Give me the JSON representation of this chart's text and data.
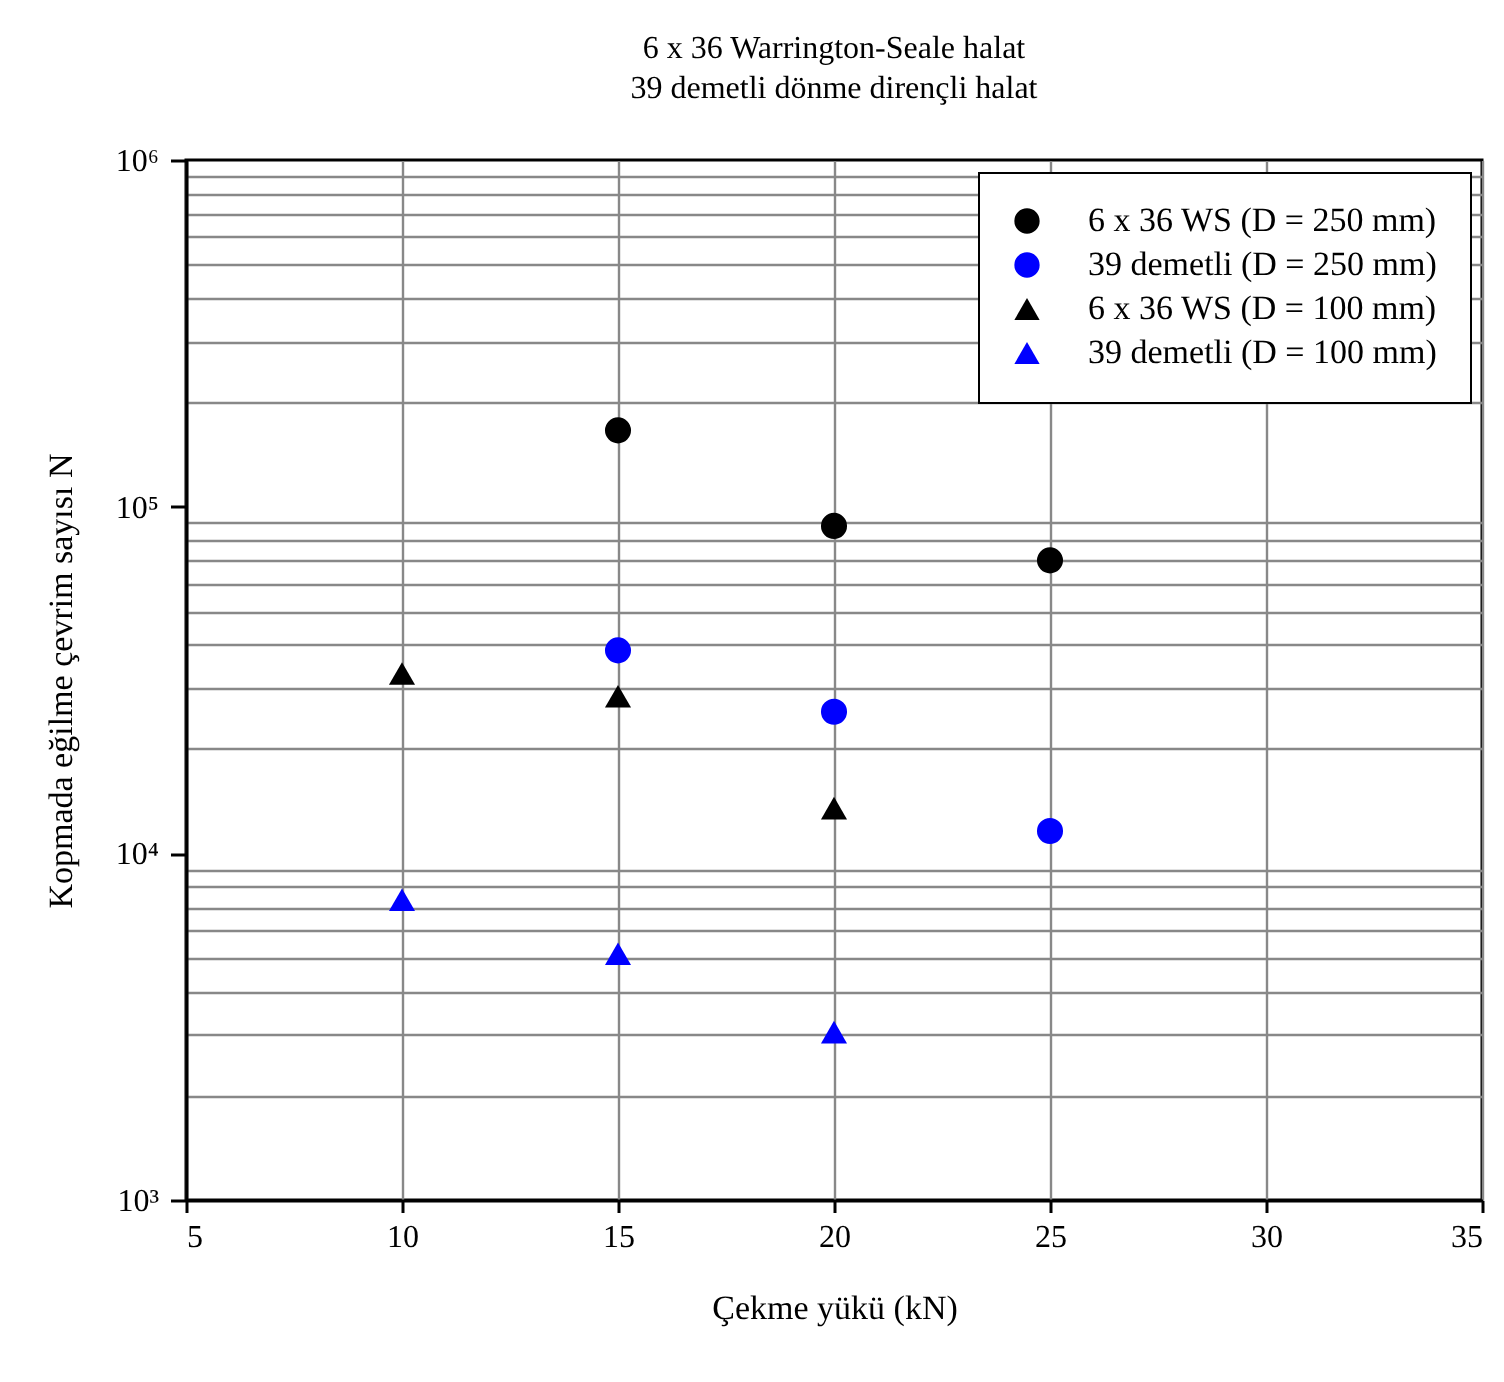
{
  "chart_data": {
    "type": "scatter",
    "title": "6 x 36 Warrington-Seale halat",
    "subtitle": "39 demetli dönme dirençli halat",
    "xlabel": "Çekme yükü (kN)",
    "ylabel": "Kopmada eğilme çevrim sayısı N",
    "log": "y",
    "grid": true,
    "legend": "top right",
    "xlim": [
      5,
      35
    ],
    "xticks": [
      5,
      10,
      15,
      20,
      25,
      30,
      35
    ],
    "ylim": [
      1000,
      1000000
    ],
    "yticks": [
      {
        "value": 1000,
        "label": "10³"
      },
      {
        "value": 2000,
        "label": null
      },
      {
        "value": 3000,
        "label": null
      },
      {
        "value": 4000,
        "label": null
      },
      {
        "value": 5000,
        "label": null
      },
      {
        "value": 6000,
        "label": null
      },
      {
        "value": 7000,
        "label": null
      },
      {
        "value": 8000,
        "label": null
      },
      {
        "value": 9000,
        "label": null
      },
      {
        "value": 10000,
        "label": "10⁴"
      },
      {
        "value": 20000,
        "label": null
      },
      {
        "value": 30000,
        "label": null
      },
      {
        "value": 40000,
        "label": null
      },
      {
        "value": 50000,
        "label": null
      },
      {
        "value": 60000,
        "label": null
      },
      {
        "value": 70000,
        "label": null
      },
      {
        "value": 80000,
        "label": null
      },
      {
        "value": 90000,
        "label": null
      },
      {
        "value": 100000,
        "label": "10⁵"
      },
      {
        "value": 200000,
        "label": null
      },
      {
        "value": 300000,
        "label": null
      },
      {
        "value": 400000,
        "label": null
      },
      {
        "value": 500000,
        "label": null
      },
      {
        "value": 600000,
        "label": null
      },
      {
        "value": 700000,
        "label": null
      },
      {
        "value": 800000,
        "label": null
      },
      {
        "value": 900000,
        "label": null
      },
      {
        "value": 1000000,
        "label": "10⁶"
      }
    ],
    "series": [
      {
        "name": "6 x 36 WS (D = 250 mm)",
        "color": "#000000",
        "marker": "circle",
        "x": [
          15,
          20,
          25
        ],
        "values": [
          166000,
          88000,
          70000
        ]
      },
      {
        "name": "39 demetli (D = 250 mm)",
        "color": "#0000ff",
        "marker": "circle",
        "x": [
          15,
          20,
          25
        ],
        "values": [
          38500,
          25600,
          11600
        ]
      },
      {
        "name": "6 x 36 WS (D = 100 mm)",
        "color": "#000000",
        "marker": "triangle",
        "x": [
          10,
          15,
          20
        ],
        "values": [
          33000,
          28400,
          13500
        ]
      },
      {
        "name": "39 demetli (D = 100 mm)",
        "color": "#0000ff",
        "marker": "triangle",
        "x": [
          10,
          15,
          20
        ],
        "values": [
          7350,
          5130,
          3050
        ]
      }
    ]
  }
}
